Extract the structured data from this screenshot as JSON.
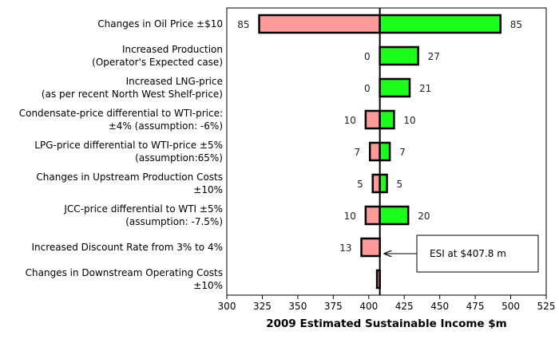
{
  "chart_data": {
    "type": "bar",
    "orientation": "horizontal",
    "subtype": "tornado",
    "base": 407.8,
    "categories": [
      [
        "Changes in Oil Price ±$10"
      ],
      [
        "Increased Production",
        "(Operator's Expected case)"
      ],
      [
        "Increased LNG-price",
        "(as per recent North West Shelf-price)"
      ],
      [
        "Condensate-price differential to WTI-price:",
        "±4% (assumption: -6%)"
      ],
      [
        "LPG-price differential to WTI-price ±5%",
        "(assumption:65%)"
      ],
      [
        "Changes in Upstream Production Costs",
        "±10%"
      ],
      [
        "JCC-price differential to WTI ±5%",
        "(assumption: -7.5%)"
      ],
      [
        "Increased Discount Rate from 3% to 4%"
      ],
      [
        "Changes in Downstream Operating Costs",
        "±10%"
      ]
    ],
    "series": [
      {
        "values": [
          -85,
          0,
          0,
          -10,
          -7,
          -5,
          -10,
          -13,
          -2
        ],
        "labels": [
          "85",
          "0",
          "0",
          "10",
          "7",
          "5",
          "10",
          "13",
          ""
        ],
        "color": "#ff9a9a"
      },
      {
        "values": [
          85,
          27,
          21,
          10,
          7,
          5,
          20,
          0,
          0
        ],
        "labels": [
          "85",
          "27",
          "21",
          "10",
          "7",
          "5",
          "20",
          "",
          ""
        ],
        "color": "#1aff1a"
      }
    ],
    "xlabel": "2009 Estimated Sustainable Income $m",
    "xlim": [
      300,
      525
    ],
    "xticks": [
      300,
      325,
      350,
      375,
      400,
      425,
      450,
      475,
      500,
      525
    ],
    "grid": false,
    "annotation": {
      "text": "ESI at $407.8 m",
      "points_to": 407.8
    }
  }
}
